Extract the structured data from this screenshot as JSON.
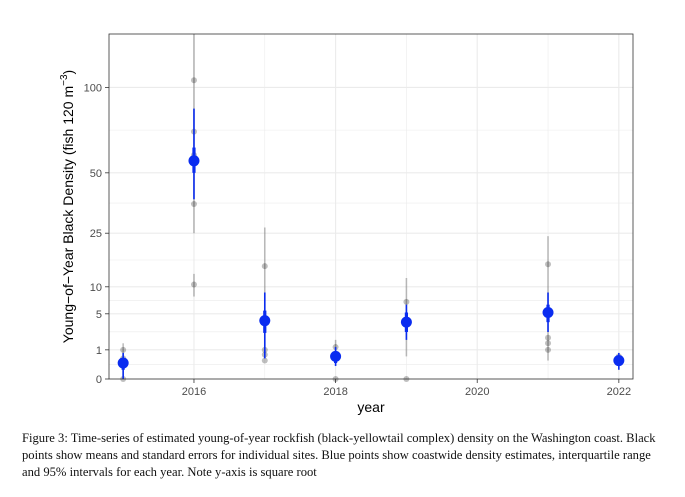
{
  "chart_data": {
    "type": "scatter",
    "xlabel": "year",
    "ylabel": "Young−of−Year Black Density (fish 120 m",
    "ylabel_sup": "−3",
    "ylabel_close": ")",
    "y_scale": "sqrt",
    "xlim": [
      2014.8,
      2022.2
    ],
    "ylim": [
      0,
      140
    ],
    "x_ticks": [
      2016,
      2018,
      2020,
      2022
    ],
    "y_ticks": [
      0,
      1,
      5,
      10,
      25,
      50,
      100
    ],
    "grid": true,
    "site_points": [
      {
        "year": 2015,
        "y": 1.0
      },
      {
        "year": 2015,
        "y": 0.5
      },
      {
        "year": 2015,
        "y": 0.0
      },
      {
        "year": 2016,
        "y": 105
      },
      {
        "year": 2016,
        "y": 72
      },
      {
        "year": 2016,
        "y": 59
      },
      {
        "year": 2016,
        "y": 36
      },
      {
        "year": 2016,
        "y": 10.5
      },
      {
        "year": 2017,
        "y": 15
      },
      {
        "year": 2017,
        "y": 1.0
      },
      {
        "year": 2017,
        "y": 0.7
      },
      {
        "year": 2017,
        "y": 0.4
      },
      {
        "year": 2018,
        "y": 1.2
      },
      {
        "year": 2018,
        "y": 0.0
      },
      {
        "year": 2019,
        "y": 7.0
      },
      {
        "year": 2019,
        "y": 3.8
      },
      {
        "year": 2019,
        "y": 0.0
      },
      {
        "year": 2021,
        "y": 15.5
      },
      {
        "year": 2021,
        "y": 2.0
      },
      {
        "year": 2021,
        "y": 1.5
      },
      {
        "year": 2021,
        "y": 1.0
      },
      {
        "year": 2022,
        "y": 0.6
      }
    ],
    "site_errorbars": [
      {
        "year": 2015,
        "lo": 0.0,
        "hi": 1.5
      },
      {
        "year": 2016,
        "lo": 25,
        "hi": 140
      },
      {
        "year": 2016,
        "lo": 8,
        "hi": 13
      },
      {
        "year": 2017,
        "lo": 0.5,
        "hi": 27
      },
      {
        "year": 2018,
        "lo": 0.3,
        "hi": 1.8
      },
      {
        "year": 2019,
        "lo": 0.6,
        "hi": 12
      },
      {
        "year": 2021,
        "lo": 0.4,
        "hi": 24
      }
    ],
    "coastwide": [
      {
        "year": 2015,
        "mean": 0.3,
        "iqr": [
          0.1,
          0.5
        ],
        "ci95": [
          0.0,
          0.8
        ]
      },
      {
        "year": 2016,
        "mean": 56,
        "iqr": [
          50,
          63
        ],
        "ci95": [
          38,
          86
        ]
      },
      {
        "year": 2017,
        "mean": 4.0,
        "iqr": [
          2.5,
          5.5
        ],
        "ci95": [
          0.5,
          8.8
        ]
      },
      {
        "year": 2018,
        "mean": 0.6,
        "iqr": [
          0.3,
          0.8
        ],
        "ci95": [
          0.2,
          1.2
        ]
      },
      {
        "year": 2019,
        "mean": 3.8,
        "iqr": [
          2.6,
          5.2
        ],
        "ci95": [
          1.8,
          6.5
        ]
      },
      {
        "year": 2021,
        "mean": 5.2,
        "iqr": [
          3.8,
          6.5
        ],
        "ci95": [
          2.6,
          8.8
        ]
      },
      {
        "year": 2022,
        "mean": 0.4,
        "iqr": [
          0.2,
          0.6
        ],
        "ci95": [
          0.1,
          0.8
        ]
      }
    ],
    "colors": {
      "site": "#000000",
      "coastwide": "#0a2cf0",
      "grid": "#ebebeb",
      "panel_border": "#333333"
    }
  },
  "caption": "Figure 3:   Time-series of estimated young-of-year rockfish (black-yellowtail complex) density on the Washington coast. Black points show means and standard errors for individual sites. Blue points show coastwide density estimates, interquartile range and 95% intervals for each year. Note y-axis is square root"
}
